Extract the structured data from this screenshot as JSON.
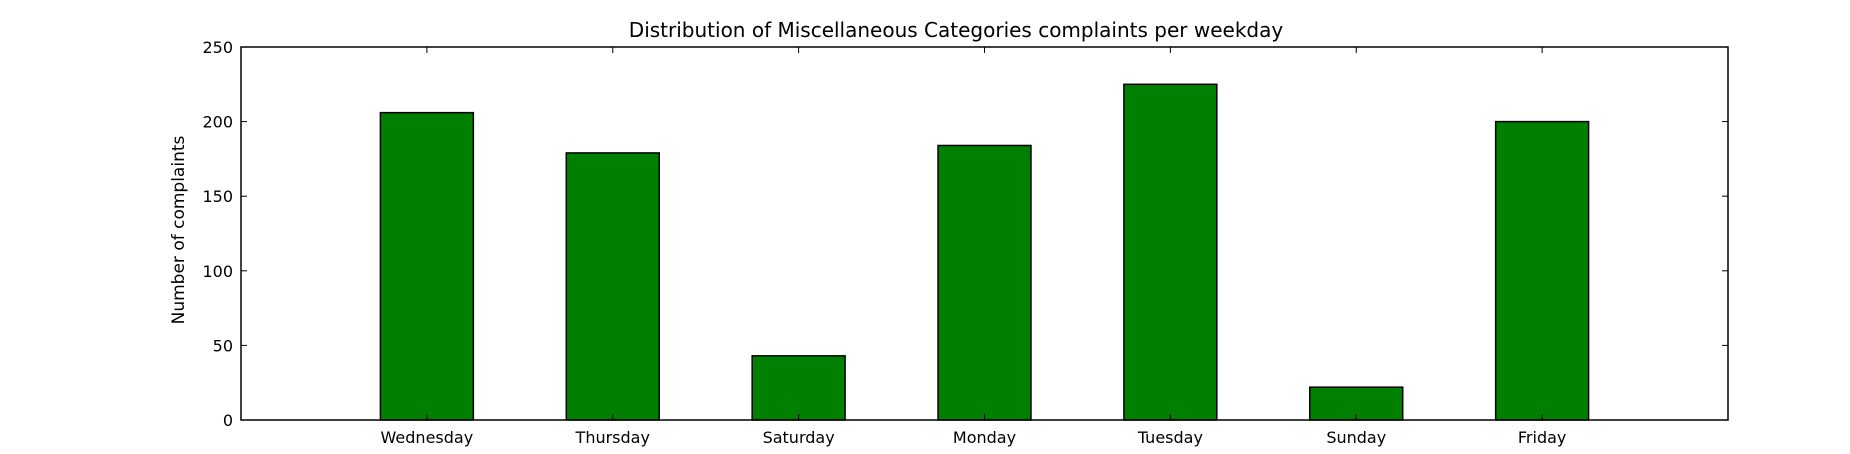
{
  "chart_data": {
    "type": "bar",
    "title": "Distribution of  Miscellaneous Categories complaints per weekday",
    "xlabel": "",
    "ylabel": "Number of complaints",
    "categories": [
      "Wednesday",
      "Thursday",
      "Saturday",
      "Monday",
      "Tuesday",
      "Sunday",
      "Friday"
    ],
    "values": [
      206,
      179,
      43,
      184,
      225,
      22,
      200
    ],
    "ylim": [
      0,
      250
    ],
    "yticks": [
      0,
      50,
      100,
      150,
      200,
      250
    ],
    "xlim": [
      -1,
      7
    ],
    "grid": false,
    "legend": "none",
    "colors": {
      "bar_fill": "#008000",
      "bar_edge": "#000000",
      "axes": "#000000",
      "background": "#ffffff"
    }
  }
}
